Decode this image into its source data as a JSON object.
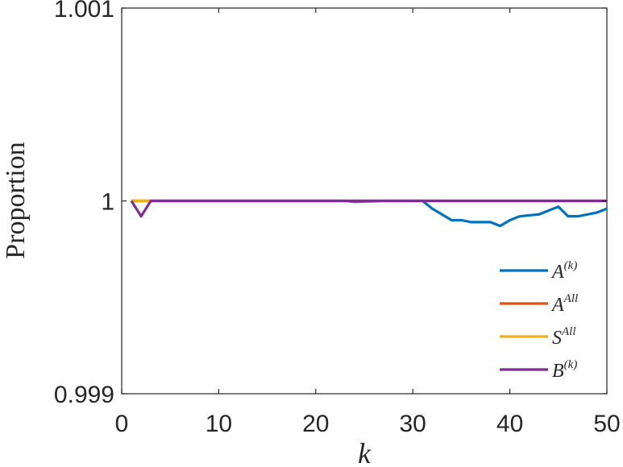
{
  "chart_data": {
    "type": "line",
    "xlabel": "k",
    "ylabel": "Proportion",
    "xlim": [
      0,
      50
    ],
    "ylim": [
      0.999,
      1.001
    ],
    "xticks": [
      0,
      10,
      20,
      30,
      40,
      50
    ],
    "xtick_labels": [
      "0",
      "10",
      "20",
      "30",
      "40",
      "50"
    ],
    "yticks": [
      0.999,
      1,
      1.001
    ],
    "ytick_labels": [
      "0.999",
      "1",
      "1.001"
    ],
    "grid": false,
    "legend_position": "bottom-right",
    "series": [
      {
        "name": "A(k)",
        "legend_base": "A",
        "legend_sup": "(k)",
        "color": "#0072BD",
        "x": [
          1,
          2,
          3,
          4,
          5,
          6,
          7,
          8,
          9,
          10,
          11,
          12,
          13,
          14,
          15,
          16,
          17,
          18,
          19,
          20,
          21,
          22,
          23,
          24,
          25,
          26,
          27,
          28,
          29,
          30,
          31,
          32,
          33,
          34,
          35,
          36,
          37,
          38,
          39,
          40,
          41,
          42,
          43,
          44,
          45,
          46,
          47,
          48,
          49,
          50
        ],
        "values": [
          1,
          1,
          1,
          1,
          1,
          1,
          1,
          1,
          1,
          1,
          1,
          1,
          1,
          1,
          1,
          1,
          1,
          1,
          1,
          1,
          1,
          1,
          1,
          0.999995,
          0.999997,
          0.999998,
          1,
          1,
          1,
          1,
          1,
          0.99996,
          0.99993,
          0.9999,
          0.9999,
          0.99989,
          0.99989,
          0.99989,
          0.99987,
          0.9999,
          0.99992,
          0.999925,
          0.99993,
          0.99995,
          0.99997,
          0.99992,
          0.99992,
          0.99993,
          0.99994,
          0.99996
        ]
      },
      {
        "name": "AAll",
        "legend_base": "A",
        "legend_sup": "All",
        "color": "#D95319",
        "x": [
          1,
          3,
          50
        ],
        "values": [
          1,
          1,
          1
        ]
      },
      {
        "name": "SAll",
        "legend_base": "S",
        "legend_sup": "All",
        "color": "#EDB120",
        "x": [
          1,
          2,
          3,
          50
        ],
        "values": [
          1,
          1,
          1,
          1
        ]
      },
      {
        "name": "B(k)",
        "legend_base": "B",
        "legend_sup": "(k)",
        "color": "#7E2F8E",
        "x": [
          1,
          2,
          3,
          4,
          50
        ],
        "values": [
          1,
          0.99992,
          1,
          1,
          1
        ]
      }
    ]
  }
}
